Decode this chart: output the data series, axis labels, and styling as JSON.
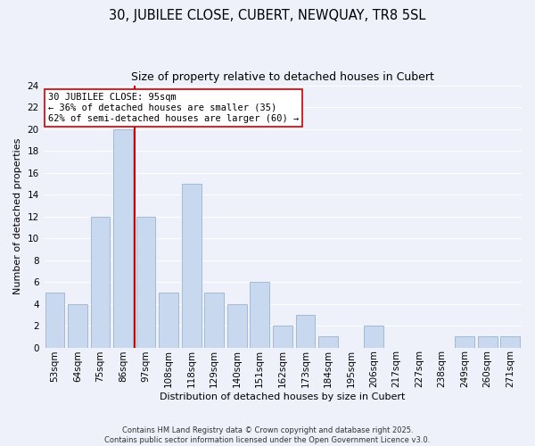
{
  "title": "30, JUBILEE CLOSE, CUBERT, NEWQUAY, TR8 5SL",
  "subtitle": "Size of property relative to detached houses in Cubert",
  "xlabel": "Distribution of detached houses by size in Cubert",
  "ylabel": "Number of detached properties",
  "bar_labels": [
    "53sqm",
    "64sqm",
    "75sqm",
    "86sqm",
    "97sqm",
    "108sqm",
    "118sqm",
    "129sqm",
    "140sqm",
    "151sqm",
    "162sqm",
    "173sqm",
    "184sqm",
    "195sqm",
    "206sqm",
    "217sqm",
    "227sqm",
    "238sqm",
    "249sqm",
    "260sqm",
    "271sqm"
  ],
  "bar_values": [
    5,
    4,
    12,
    20,
    12,
    5,
    15,
    5,
    4,
    6,
    2,
    3,
    1,
    0,
    2,
    0,
    0,
    0,
    1,
    1,
    1
  ],
  "bar_color": "#c8d8ee",
  "bar_edge_color": "#9ab4d2",
  "vline_color": "#cc0000",
  "vline_x_index": 3.5,
  "annotation_text": "30 JUBILEE CLOSE: 95sqm\n← 36% of detached houses are smaller (35)\n62% of semi-detached houses are larger (60) →",
  "annotation_box_facecolor": "#ffffff",
  "annotation_box_edgecolor": "#cc0000",
  "ylim": [
    0,
    24
  ],
  "yticks": [
    0,
    2,
    4,
    6,
    8,
    10,
    12,
    14,
    16,
    18,
    20,
    22,
    24
  ],
  "background_color": "#eef1fa",
  "grid_color": "#ffffff",
  "title_fontsize": 10.5,
  "subtitle_fontsize": 9,
  "axis_label_fontsize": 8,
  "tick_fontsize": 7.5,
  "footer_text": "Contains HM Land Registry data © Crown copyright and database right 2025.\nContains public sector information licensed under the Open Government Licence v3.0.",
  "footer_fontsize": 6.0
}
